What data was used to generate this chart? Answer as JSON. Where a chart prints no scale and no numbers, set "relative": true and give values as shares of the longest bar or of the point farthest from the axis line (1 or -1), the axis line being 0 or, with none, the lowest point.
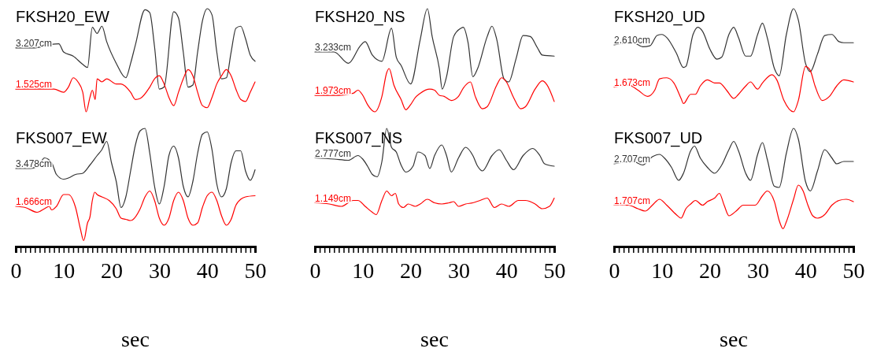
{
  "chart_data": [
    {
      "type": "line",
      "title": "FKSH20_EW",
      "relative": true,
      "xlim": [
        0,
        50
      ],
      "series": [
        {
          "name": "3.207cm",
          "color": "#333333",
          "x": [
            0,
            4,
            7,
            9,
            10,
            12,
            14,
            15,
            16,
            17,
            18,
            19,
            21,
            23,
            24,
            25,
            27,
            28,
            29,
            30,
            31,
            33,
            34,
            35,
            36,
            37,
            38,
            39,
            40,
            41,
            42,
            43,
            44,
            45,
            46,
            47,
            48,
            49,
            50
          ],
          "values": [
            0.62,
            0.62,
            0.65,
            0.66,
            0.58,
            0.54,
            0.46,
            0.43,
            0.82,
            0.76,
            0.83,
            0.68,
            0.47,
            0.33,
            0.47,
            0.65,
            0.99,
            0.96,
            0.63,
            0.22,
            0.24,
            0.97,
            0.91,
            0.58,
            0.24,
            0.26,
            0.58,
            0.88,
            1,
            0.94,
            0.58,
            0.32,
            0.33,
            0.58,
            0.81,
            0.83,
            0.71,
            0.55,
            0.49
          ]
        },
        {
          "name": "1.525cm",
          "color": "#ff0000",
          "x": [
            0,
            4,
            8,
            10,
            11,
            12,
            13,
            14,
            14.7,
            15.5,
            16,
            16.6,
            17,
            18,
            19,
            21,
            22,
            24,
            25,
            26,
            28,
            29,
            30,
            31,
            32,
            33,
            34,
            35,
            36,
            37,
            38,
            39,
            40,
            41,
            42,
            43,
            44,
            45,
            46,
            47,
            48,
            49,
            50
          ],
          "values": [
            0.22,
            0.22,
            0.22,
            0.19,
            0.24,
            0.33,
            0.29,
            0.19,
            0,
            0.14,
            0.21,
            0.12,
            0.32,
            0.29,
            0.32,
            0.27,
            0.27,
            0.19,
            0.12,
            0.13,
            0.24,
            0.32,
            0.35,
            0.27,
            0.14,
            0.06,
            0.19,
            0.32,
            0.41,
            0.35,
            0.19,
            0.06,
            0.04,
            0.14,
            0.27,
            0.35,
            0.41,
            0.35,
            0.22,
            0.12,
            0.1,
            0.19,
            0.29
          ]
        }
      ]
    },
    {
      "type": "line",
      "title": "FKSH20_NS",
      "relative": true,
      "xlim": [
        0,
        50
      ],
      "series": [
        {
          "name": "3.233cm",
          "color": "#333333",
          "x": [
            0,
            4,
            7,
            9.5,
            10.5,
            12,
            14,
            16,
            17,
            18,
            20,
            22,
            23.5,
            24.5,
            26,
            26.6,
            27.5,
            29,
            30.5,
            31,
            32,
            33,
            34,
            36,
            37,
            38,
            39.5,
            40.5,
            42,
            43.5,
            45,
            46.5,
            47.5,
            50
          ],
          "values": [
            0.58,
            0.58,
            0.47,
            0.64,
            0.68,
            0.55,
            0.49,
            0.81,
            0.53,
            0.45,
            0.27,
            0.7,
            1,
            0.73,
            0.42,
            0.22,
            0.34,
            0.73,
            0.81,
            0.82,
            0.67,
            0.34,
            0.42,
            0.73,
            0.83,
            0.7,
            0.32,
            0.29,
            0.51,
            0.74,
            0.73,
            0.62,
            0.55,
            0.54
          ]
        },
        {
          "name": "1.973cm",
          "color": "#ff0000",
          "x": [
            0,
            5,
            8,
            9,
            10,
            11,
            12.5,
            14,
            15,
            15.5,
            16.5,
            18,
            19,
            20,
            21,
            22,
            24,
            25,
            26,
            27,
            28.5,
            30,
            31,
            32.5,
            33.5,
            35,
            36,
            38,
            39,
            40,
            41.5,
            43,
            44,
            46,
            47.5,
            48.5,
            50
          ],
          "values": [
            0.16,
            0.16,
            0.18,
            0.21,
            0.16,
            0.07,
            0,
            0.15,
            0.38,
            0.42,
            0.26,
            0.12,
            0.02,
            0.07,
            0.14,
            0.18,
            0.22,
            0.21,
            0.16,
            0.15,
            0.11,
            0.15,
            0.23,
            0.29,
            0.15,
            0.03,
            0.05,
            0.26,
            0.33,
            0.29,
            0.14,
            0.03,
            0.05,
            0.22,
            0.3,
            0.26,
            0.1
          ]
        }
      ]
    },
    {
      "type": "line",
      "title": "FKSH20_UD",
      "relative": true,
      "xlim": [
        0,
        50
      ],
      "series": [
        {
          "name": "2.610cm",
          "color": "#333333",
          "x": [
            0,
            4,
            6,
            7.5,
            9,
            10,
            11,
            13,
            14.5,
            15,
            16.5,
            17.5,
            18.5,
            20,
            21.5,
            22.5,
            24,
            25,
            26,
            27.5,
            28.5,
            30,
            31,
            32,
            33.5,
            34.5,
            36,
            37.5,
            38.5,
            40,
            41,
            42.5,
            44,
            45.5,
            47,
            48,
            50
          ],
          "values": [
            0.65,
            0.67,
            0.63,
            0.64,
            0.74,
            0.75,
            0.72,
            0.57,
            0.43,
            0.44,
            0.75,
            0.82,
            0.78,
            0.61,
            0.51,
            0.53,
            0.75,
            0.82,
            0.72,
            0.54,
            0.54,
            0.75,
            0.86,
            0.72,
            0.42,
            0.35,
            0.75,
            1,
            0.89,
            0.47,
            0.39,
            0.56,
            0.74,
            0.75,
            0.68,
            0.67,
            0.67
          ]
        },
        {
          "name": "1.673cm",
          "color": "#ff0000",
          "x": [
            0,
            3,
            5,
            7,
            8.5,
            9.5,
            11,
            12.5,
            14,
            14.5,
            16,
            17,
            18,
            19.5,
            21,
            22,
            23.5,
            25,
            26,
            27.5,
            28.5,
            30,
            31,
            33,
            34,
            35.5,
            37.5,
            38.5,
            40,
            41,
            42,
            43.5,
            45,
            46.5,
            48,
            50
          ],
          "values": [
            0.24,
            0.26,
            0.21,
            0.15,
            0.21,
            0.32,
            0.33,
            0.28,
            0.13,
            0.08,
            0.17,
            0.17,
            0.25,
            0.31,
            0.28,
            0.28,
            0.21,
            0.13,
            0.17,
            0.25,
            0.29,
            0.22,
            0.28,
            0.36,
            0.31,
            0.11,
            0,
            0.11,
            0.44,
            0.4,
            0.25,
            0.11,
            0.15,
            0.25,
            0.31,
            0.29
          ]
        }
      ]
    },
    {
      "type": "line",
      "title": "FKS007_EW",
      "xlabel": "sec",
      "relative": true,
      "xlim": [
        0,
        50
      ],
      "xticks": [
        0,
        {
          "value": 1,
          "label": null
        },
        {
          "value": 2,
          "label": null
        },
        {
          "value": 3,
          "label": null
        },
        {
          "value": 4,
          "label": null
        },
        {
          "value": 5,
          "label": null
        },
        {
          "value": 6,
          "label": null
        },
        {
          "value": 7,
          "label": null
        },
        {
          "value": 8,
          "label": null
        },
        {
          "value": 9,
          "label": null
        },
        10,
        {
          "value": 11,
          "label": null
        },
        {
          "value": 12,
          "label": null
        },
        {
          "value": 13,
          "label": null
        },
        {
          "value": 14,
          "label": null
        },
        {
          "value": 15,
          "label": null
        },
        {
          "value": 16,
          "label": null
        },
        {
          "value": 17,
          "label": null
        },
        {
          "value": 18,
          "label": null
        },
        {
          "value": 19,
          "label": null
        },
        20,
        {
          "value": 21,
          "label": null
        },
        {
          "value": 22,
          "label": null
        },
        {
          "value": 23,
          "label": null
        },
        {
          "value": 24,
          "label": null
        },
        {
          "value": 25,
          "label": null
        },
        {
          "value": 26,
          "label": null
        },
        {
          "value": 27,
          "label": null
        },
        {
          "value": 28,
          "label": null
        },
        {
          "value": 29,
          "label": null
        },
        30,
        {
          "value": 31,
          "label": null
        },
        {
          "value": 32,
          "label": null
        },
        {
          "value": 33,
          "label": null
        },
        {
          "value": 34,
          "label": null
        },
        {
          "value": 35,
          "label": null
        },
        {
          "value": 36,
          "label": null
        },
        {
          "value": 37,
          "label": null
        },
        {
          "value": 38,
          "label": null
        },
        {
          "value": 39,
          "label": null
        },
        40,
        {
          "value": 41,
          "label": null
        },
        {
          "value": 42,
          "label": null
        },
        {
          "value": 43,
          "label": null
        },
        {
          "value": 44,
          "label": null
        },
        {
          "value": 45,
          "label": null
        },
        {
          "value": 46,
          "label": null
        },
        {
          "value": 47,
          "label": null
        },
        {
          "value": 48,
          "label": null
        },
        {
          "value": 49,
          "label": null
        },
        50
      ],
      "tick_labels": "x",
      "series": [
        {
          "name": "3.478cm",
          "color": "#333333",
          "x": [
            0,
            3,
            5,
            6,
            7.5,
            8.5,
            10,
            11,
            12.5,
            14,
            15.5,
            17,
            18,
            19,
            20,
            21,
            22,
            23,
            24,
            25,
            26,
            27,
            28,
            29,
            30,
            31,
            32,
            33,
            34,
            35,
            36,
            37,
            38,
            39,
            40,
            41,
            42,
            43,
            44,
            45,
            46,
            47,
            48,
            49,
            50
          ],
          "values": [
            0.66,
            0.66,
            0.7,
            0.75,
            0.71,
            0.61,
            0.57,
            0.58,
            0.61,
            0.62,
            0.69,
            0.77,
            0.82,
            0.89,
            0.71,
            0.55,
            0.33,
            0.42,
            0.64,
            0.86,
            0.98,
            1,
            0.79,
            0.51,
            0.36,
            0.51,
            0.77,
            0.85,
            0.75,
            0.51,
            0.42,
            0.55,
            0.79,
            0.95,
            0.97,
            0.82,
            0.53,
            0.42,
            0.49,
            0.71,
            0.81,
            0.81,
            0.64,
            0.56,
            0.65
          ]
        },
        {
          "name": "1.666cm",
          "color": "#ff0000",
          "x": [
            0,
            2,
            4.5,
            6,
            7,
            7.5,
            8.5,
            10,
            11,
            12.5,
            13.5,
            14.2,
            15,
            15.5,
            16,
            16.5,
            17,
            18,
            19.5,
            21,
            22,
            23,
            24,
            26,
            27,
            28,
            29,
            30,
            31,
            32,
            33,
            34,
            35,
            36,
            37,
            38,
            39,
            40,
            41,
            42,
            43,
            44,
            45,
            46,
            47,
            48,
            50
          ],
          "values": [
            0.34,
            0.33,
            0.29,
            0.32,
            0.34,
            0.31,
            0.34,
            0.44,
            0.44,
            0.33,
            0.15,
            0.05,
            0.2,
            0.25,
            0.39,
            0.46,
            0.44,
            0.42,
            0.39,
            0.32,
            0.24,
            0.23,
            0.22,
            0.32,
            0.42,
            0.47,
            0.39,
            0.24,
            0.18,
            0.24,
            0.39,
            0.46,
            0.39,
            0.24,
            0.18,
            0.2,
            0.33,
            0.43,
            0.46,
            0.39,
            0.26,
            0.18,
            0.23,
            0.35,
            0.4,
            0.42,
            0.43
          ]
        }
      ]
    },
    {
      "type": "line",
      "title": "FKS007_NS",
      "xlabel": "sec",
      "relative": true,
      "xlim": [
        0,
        50
      ],
      "xticks": [
        0,
        {
          "value": 1,
          "label": null
        },
        {
          "value": 2,
          "label": null
        },
        {
          "value": 3,
          "label": null
        },
        {
          "value": 4,
          "label": null
        },
        {
          "value": 5,
          "label": null
        },
        {
          "value": 6,
          "label": null
        },
        {
          "value": 7,
          "label": null
        },
        {
          "value": 8,
          "label": null
        },
        {
          "value": 9,
          "label": null
        },
        10,
        {
          "value": 11,
          "label": null
        },
        {
          "value": 12,
          "label": null
        },
        {
          "value": 13,
          "label": null
        },
        {
          "value": 14,
          "label": null
        },
        {
          "value": 15,
          "label": null
        },
        {
          "value": 16,
          "label": null
        },
        {
          "value": 17,
          "label": null
        },
        {
          "value": 18,
          "label": null
        },
        {
          "value": 19,
          "label": null
        },
        20,
        {
          "value": 21,
          "label": null
        },
        {
          "value": 22,
          "label": null
        },
        {
          "value": 23,
          "label": null
        },
        {
          "value": 24,
          "label": null
        },
        {
          "value": 25,
          "label": null
        },
        {
          "value": 26,
          "label": null
        },
        {
          "value": 27,
          "label": null
        },
        {
          "value": 28,
          "label": null
        },
        {
          "value": 29,
          "label": null
        },
        30,
        {
          "value": 31,
          "label": null
        },
        {
          "value": 32,
          "label": null
        },
        {
          "value": 33,
          "label": null
        },
        {
          "value": 34,
          "label": null
        },
        {
          "value": 35,
          "label": null
        },
        {
          "value": 36,
          "label": null
        },
        {
          "value": 37,
          "label": null
        },
        {
          "value": 38,
          "label": null
        },
        {
          "value": 39,
          "label": null
        },
        40,
        {
          "value": 41,
          "label": null
        },
        {
          "value": 42,
          "label": null
        },
        {
          "value": 43,
          "label": null
        },
        {
          "value": 44,
          "label": null
        },
        {
          "value": 45,
          "label": null
        },
        {
          "value": 46,
          "label": null
        },
        {
          "value": 47,
          "label": null
        },
        {
          "value": 48,
          "label": null
        },
        {
          "value": 49,
          "label": null
        },
        50
      ],
      "tick_labels": "x",
      "series": [
        {
          "name": "2.777cm",
          "color": "#333333",
          "x": [
            0,
            4,
            7,
            9,
            10,
            11,
            12,
            13,
            14,
            15,
            16,
            17,
            18,
            19,
            20.5,
            21.5,
            23,
            24,
            25,
            26.5,
            27.5,
            28.5,
            30,
            31.5,
            33,
            34,
            35,
            37,
            38.5,
            40,
            41.5,
            43.5,
            45.5,
            47,
            48,
            50
          ],
          "values": [
            0.75,
            0.74,
            0.73,
            0.77,
            0.74,
            0.68,
            0.61,
            0.59,
            0.72,
            1,
            0.84,
            0.8,
            0.69,
            0.63,
            0.68,
            0.8,
            0.77,
            0.66,
            0.77,
            0.86,
            0.77,
            0.63,
            0.75,
            0.84,
            0.77,
            0.68,
            0.64,
            0.77,
            0.82,
            0.73,
            0.65,
            0.77,
            0.83,
            0.77,
            0.7,
            0.68
          ]
        },
        {
          "name": "1.149cm",
          "color": "#ff0000",
          "x": [
            0,
            3,
            5.5,
            8,
            9,
            10.5,
            12,
            12.8,
            14,
            15,
            16,
            16.8,
            17.5,
            18.5,
            19.5,
            21,
            22,
            23.5,
            25,
            26.5,
            28,
            29,
            30,
            31.5,
            33,
            34.5,
            36,
            37.5,
            39,
            40.5,
            42.5,
            44,
            46,
            47.5,
            49,
            50
          ],
          "values": [
            0.37,
            0.36,
            0.34,
            0.39,
            0.39,
            0.34,
            0.29,
            0.27,
            0.39,
            0.47,
            0.43,
            0.45,
            0.36,
            0.33,
            0.36,
            0.34,
            0.36,
            0.4,
            0.37,
            0.36,
            0.37,
            0.38,
            0.34,
            0.36,
            0.37,
            0.39,
            0.41,
            0.33,
            0.36,
            0.34,
            0.39,
            0.39,
            0.36,
            0.32,
            0.34,
            0.41
          ]
        }
      ]
    },
    {
      "type": "line",
      "title": "FKS007_UD",
      "xlabel": "sec",
      "relative": true,
      "xlim": [
        0,
        50
      ],
      "xticks": [
        0,
        {
          "value": 1,
          "label": null
        },
        {
          "value": 2,
          "label": null
        },
        {
          "value": 3,
          "label": null
        },
        {
          "value": 4,
          "label": null
        },
        {
          "value": 5,
          "label": null
        },
        {
          "value": 6,
          "label": null
        },
        {
          "value": 7,
          "label": null
        },
        {
          "value": 8,
          "label": null
        },
        {
          "value": 9,
          "label": null
        },
        10,
        {
          "value": 11,
          "label": null
        },
        {
          "value": 12,
          "label": null
        },
        {
          "value": 13,
          "label": null
        },
        {
          "value": 14,
          "label": null
        },
        {
          "value": 15,
          "label": null
        },
        {
          "value": 16,
          "label": null
        },
        {
          "value": 17,
          "label": null
        },
        {
          "value": 18,
          "label": null
        },
        {
          "value": 19,
          "label": null
        },
        20,
        {
          "value": 21,
          "label": null
        },
        {
          "value": 22,
          "label": null
        },
        {
          "value": 23,
          "label": null
        },
        {
          "value": 24,
          "label": null
        },
        {
          "value": 25,
          "label": null
        },
        {
          "value": 26,
          "label": null
        },
        {
          "value": 27,
          "label": null
        },
        {
          "value": 28,
          "label": null
        },
        {
          "value": 29,
          "label": null
        },
        30,
        {
          "value": 31,
          "label": null
        },
        {
          "value": 32,
          "label": null
        },
        {
          "value": 33,
          "label": null
        },
        {
          "value": 34,
          "label": null
        },
        {
          "value": 35,
          "label": null
        },
        {
          "value": 36,
          "label": null
        },
        {
          "value": 37,
          "label": null
        },
        {
          "value": 38,
          "label": null
        },
        {
          "value": 39,
          "label": null
        },
        40,
        {
          "value": 41,
          "label": null
        },
        {
          "value": 42,
          "label": null
        },
        {
          "value": 43,
          "label": null
        },
        {
          "value": 44,
          "label": null
        },
        {
          "value": 45,
          "label": null
        },
        {
          "value": 46,
          "label": null
        },
        {
          "value": 47,
          "label": null
        },
        {
          "value": 48,
          "label": null
        },
        {
          "value": 49,
          "label": null
        },
        50
      ],
      "tick_labels": "x",
      "series": [
        {
          "name": "2.707cm",
          "color": "#333333",
          "x": [
            0,
            4,
            6,
            8,
            9.5,
            10.5,
            12,
            13.5,
            14.5,
            16,
            16.8,
            18,
            19.5,
            21,
            22.5,
            24,
            25,
            26,
            27.5,
            28.5,
            30,
            31,
            32,
            33.5,
            34.5,
            36,
            37.5,
            38.5,
            40,
            41,
            42.5,
            44,
            45.5,
            46.5,
            48,
            50
          ],
          "values": [
            0.7,
            0.72,
            0.69,
            0.76,
            0.78,
            0.75,
            0.67,
            0.56,
            0.62,
            0.81,
            0.85,
            0.75,
            0.67,
            0.62,
            0.69,
            0.82,
            0.89,
            0.81,
            0.62,
            0.56,
            0.78,
            0.88,
            0.74,
            0.51,
            0.5,
            0.79,
            1,
            0.91,
            0.55,
            0.47,
            0.64,
            0.82,
            0.75,
            0.7,
            0.72,
            0.72
          ]
        },
        {
          "name": "1.707cm",
          "color": "#ff0000",
          "x": [
            0,
            3,
            5,
            6.5,
            8,
            9.5,
            11,
            13,
            14,
            15,
            16,
            17,
            18.5,
            19.5,
            21,
            22,
            23,
            24,
            25.5,
            27,
            28.5,
            29.5,
            31,
            32,
            33.5,
            34.5,
            35.3,
            36,
            37.5,
            38.5,
            39.5,
            40.5,
            41.5,
            42.5,
            44,
            45.5,
            47,
            48.5,
            50
          ],
          "values": [
            0.35,
            0.35,
            0.32,
            0.3,
            0.35,
            0.4,
            0.35,
            0.27,
            0.24,
            0.32,
            0.36,
            0.39,
            0.35,
            0.38,
            0.41,
            0.45,
            0.35,
            0.26,
            0.3,
            0.35,
            0.35,
            0.35,
            0.43,
            0.47,
            0.38,
            0.22,
            0.15,
            0.21,
            0.4,
            0.52,
            0.47,
            0.35,
            0.26,
            0.24,
            0.27,
            0.35,
            0.39,
            0.4,
            0.38
          ]
        }
      ]
    }
  ]
}
